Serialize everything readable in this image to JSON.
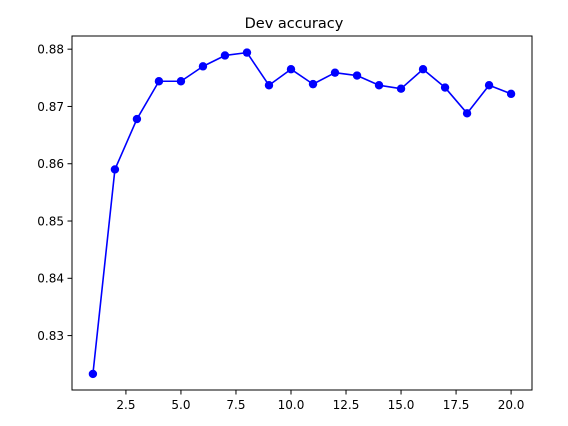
{
  "chart_data": {
    "type": "line",
    "title": "Dev accuracy",
    "xlabel": "",
    "ylabel": "",
    "xlim": [
      0.05,
      20.95
    ],
    "ylim": [
      0.8205,
      0.8823
    ],
    "xticks": [
      2.5,
      5.0,
      7.5,
      10.0,
      12.5,
      15.0,
      17.5,
      20.0
    ],
    "xtick_labels": [
      "2.5",
      "5.0",
      "7.5",
      "10.0",
      "12.5",
      "15.0",
      "17.5",
      "20.0"
    ],
    "yticks": [
      0.83,
      0.84,
      0.85,
      0.86,
      0.87,
      0.88
    ],
    "ytick_labels": [
      "0.83",
      "0.84",
      "0.85",
      "0.86",
      "0.87",
      "0.88"
    ],
    "grid": false,
    "series": [
      {
        "color": "#0000ff",
        "marker": "circle",
        "x": [
          1,
          2,
          3,
          4,
          5,
          6,
          7,
          8,
          9,
          10,
          11,
          12,
          13,
          14,
          15,
          16,
          17,
          18,
          19,
          20
        ],
        "y": [
          0.8233,
          0.859,
          0.8678,
          0.8744,
          0.8744,
          0.877,
          0.8789,
          0.8794,
          0.8737,
          0.8765,
          0.8739,
          0.8759,
          0.8754,
          0.8737,
          0.8731,
          0.8765,
          0.8733,
          0.8688,
          0.8737,
          0.8722
        ]
      }
    ]
  }
}
